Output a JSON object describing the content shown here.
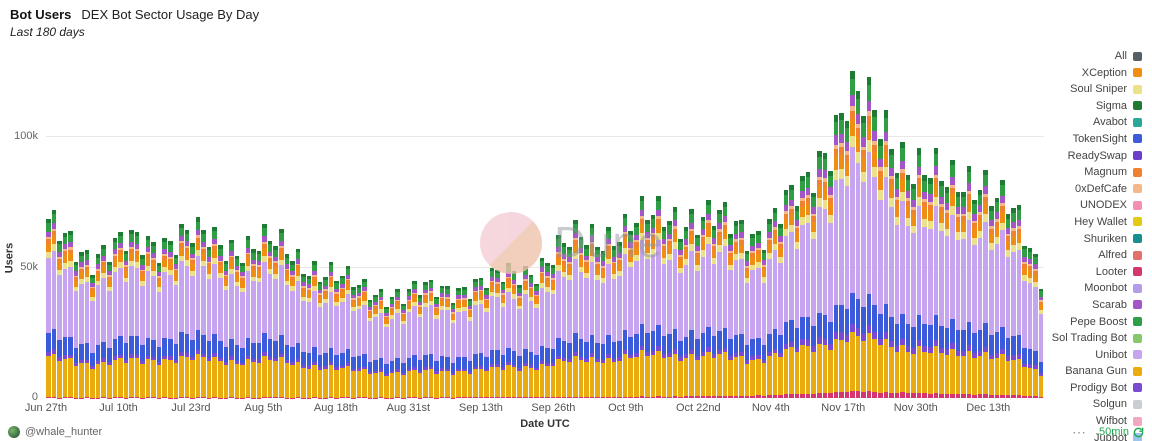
{
  "header": {
    "title": "Bot Users",
    "subtitle": "DEX Bot Sector Usage By Day",
    "timeframe": "Last 180 days"
  },
  "watermark": {
    "text": "Dune"
  },
  "footer": {
    "author": "@whale_hunter",
    "more_icon": "⋯",
    "refresh_age": "50min"
  },
  "legend": {
    "items": [
      {
        "label": "All",
        "color": "#555f66"
      },
      {
        "label": "XCeption",
        "color": "#ef8e13"
      },
      {
        "label": "Soul Sniper",
        "color": "#ece18b"
      },
      {
        "label": "Sigma",
        "color": "#1e7b34"
      },
      {
        "label": "Avabot",
        "color": "#2aa79b"
      },
      {
        "label": "TokenSight",
        "color": "#3b5bdb"
      },
      {
        "label": "ReadySwap",
        "color": "#6b3fc9"
      },
      {
        "label": "Magnum",
        "color": "#f0812f"
      },
      {
        "label": "0xDefCafe",
        "color": "#f3b98d"
      },
      {
        "label": "UNODEX",
        "color": "#f490b1"
      },
      {
        "label": "Hey Wallet",
        "color": "#e3cb13"
      },
      {
        "label": "Shuriken",
        "color": "#188f8f"
      },
      {
        "label": "Alfred",
        "color": "#e2716b"
      },
      {
        "label": "Looter",
        "color": "#d6366f"
      },
      {
        "label": "Moonbot",
        "color": "#b59ce8"
      },
      {
        "label": "Scarab",
        "color": "#a455c8"
      },
      {
        "label": "Pepe Boost",
        "color": "#2f9e44"
      },
      {
        "label": "Sol Trading Bot",
        "color": "#86c96b"
      },
      {
        "label": "Unibot",
        "color": "#c7a4ef"
      },
      {
        "label": "Banana Gun",
        "color": "#e9ab0d"
      },
      {
        "label": "Prodigy Bot",
        "color": "#7a4ad2"
      },
      {
        "label": "Solgun",
        "color": "#c9ced4"
      },
      {
        "label": "Wifbot",
        "color": "#f2a7c3"
      },
      {
        "label": "Jupbot",
        "color": "#9cc4ee"
      }
    ]
  },
  "chart_data": {
    "type": "bar",
    "stacked": true,
    "title": "DEX Bot Sector Usage By Day",
    "subtitle": "Last 180 days",
    "xlabel": "Date UTC",
    "ylabel": "Users",
    "ylim": [
      0,
      135000
    ],
    "grid": true,
    "legend_position": "right",
    "n_days": 180,
    "value_unit": "thousands of users",
    "y_ticks": [
      {
        "value": 0,
        "label": "0"
      },
      {
        "value": 50000,
        "label": "50k"
      },
      {
        "value": 100000,
        "label": "100k"
      }
    ],
    "x_ticks": [
      {
        "day": 0,
        "label": "Jun 27th"
      },
      {
        "day": 13,
        "label": "Jul 10th"
      },
      {
        "day": 26,
        "label": "Jul 23rd"
      },
      {
        "day": 39,
        "label": "Aug 5th"
      },
      {
        "day": 52,
        "label": "Aug 18th"
      },
      {
        "day": 65,
        "label": "Aug 31st"
      },
      {
        "day": 78,
        "label": "Sep 13th"
      },
      {
        "day": 91,
        "label": "Sep 26th"
      },
      {
        "day": 104,
        "label": "Oct 9th"
      },
      {
        "day": 117,
        "label": "Oct 22nd"
      },
      {
        "day": 130,
        "label": "Nov 4th"
      },
      {
        "day": 143,
        "label": "Nov 17th"
      },
      {
        "day": 156,
        "label": "Nov 30th"
      },
      {
        "day": 169,
        "label": "Dec 13th"
      }
    ],
    "sample_days": [
      0,
      8,
      16,
      24,
      32,
      40,
      48,
      56,
      64,
      72,
      80,
      88,
      96,
      104,
      112,
      120,
      128,
      136,
      144,
      150,
      156,
      162,
      168,
      174,
      179
    ],
    "series": [
      {
        "name": "Looter",
        "color": "#d6366f",
        "values_k": [
          0.2,
          0.2,
          0.2,
          0.2,
          0.2,
          0.2,
          0.2,
          0.2,
          0.2,
          0.2,
          0.3,
          0.3,
          0.4,
          0.5,
          0.6,
          0.8,
          1.0,
          1.5,
          2.5,
          2.2,
          2.0,
          1.5,
          1.5,
          1.0,
          0.6
        ]
      },
      {
        "name": "Banana Gun",
        "color": "#e9ab0d",
        "values_k": [
          15,
          13,
          14,
          15,
          14,
          14,
          12,
          10,
          9.5,
          10,
          10.5,
          12,
          14,
          15,
          16,
          15,
          14,
          17,
          21,
          19,
          17,
          15,
          16,
          13,
          9
        ]
      },
      {
        "name": "Prodigy Bot",
        "color": "#7a4ad2",
        "values_k": [
          1.5,
          1.2,
          1.3,
          1.4,
          1.3,
          1.3,
          1.1,
          0.9,
          0.8,
          0.9,
          1.0,
          1.1,
          1.3,
          1.5,
          1.6,
          1.5,
          1.5,
          2.0,
          3.0,
          2.6,
          2.3,
          2.0,
          2.2,
          1.7,
          1.1
        ]
      },
      {
        "name": "TokenSight",
        "color": "#3b5bdb",
        "values_k": [
          7,
          6,
          6.5,
          7,
          6.5,
          6.5,
          5.5,
          4.5,
          4.2,
          4.5,
          4.8,
          5.5,
          6.5,
          7,
          7.5,
          7,
          6.5,
          8,
          11,
          10,
          9,
          8,
          9,
          7,
          4.8
        ]
      },
      {
        "name": "Unibot",
        "color": "#c7a4ef",
        "values_k": [
          27,
          23,
          24.5,
          25.5,
          24.3,
          24.3,
          21,
          17.5,
          16.5,
          17.5,
          18.4,
          21,
          25.5,
          27,
          30,
          28.5,
          27,
          32,
          52,
          46,
          40,
          35,
          38.5,
          30.5,
          21
        ]
      },
      {
        "name": "Soul Sniper",
        "color": "#ece18b",
        "values_k": [
          2.2,
          1.8,
          1.9,
          2.0,
          1.9,
          1.9,
          1.7,
          1.4,
          1.3,
          1.4,
          1.5,
          1.7,
          2.0,
          2.2,
          2.4,
          2.3,
          2.2,
          2.7,
          4.2,
          3.7,
          3.3,
          2.9,
          3.1,
          2.5,
          1.7
        ]
      },
      {
        "name": "XCeption",
        "color": "#ef8e13",
        "values_k": [
          3.1,
          2.6,
          2.8,
          2.9,
          2.8,
          2.8,
          2.4,
          2.0,
          1.9,
          2.0,
          2.1,
          2.4,
          2.9,
          3.1,
          3.4,
          3.3,
          3.1,
          3.8,
          5.9,
          5.3,
          4.6,
          4.0,
          4.4,
          3.5,
          2.4
        ]
      },
      {
        "name": "Magnum",
        "color": "#f0812f",
        "values_k": [
          1.5,
          1.3,
          1.4,
          1.5,
          1.4,
          1.4,
          1.2,
          1.0,
          0.9,
          1.0,
          1.1,
          1.2,
          1.5,
          1.6,
          1.7,
          1.6,
          1.6,
          1.9,
          3.0,
          2.6,
          2.3,
          2.0,
          2.2,
          1.8,
          1.2
        ]
      },
      {
        "name": "0xDefCafe",
        "color": "#f3b98d",
        "values_k": [
          0.8,
          0.7,
          0.7,
          0.8,
          0.7,
          0.7,
          0.6,
          0.5,
          0.5,
          0.5,
          0.6,
          0.6,
          0.8,
          0.8,
          0.9,
          0.9,
          0.8,
          1.0,
          1.6,
          1.4,
          1.2,
          1.1,
          1.2,
          0.9,
          0.6
        ]
      },
      {
        "name": "Scarab",
        "color": "#a455c8",
        "values_k": [
          2.0,
          1.7,
          1.8,
          1.9,
          1.8,
          1.8,
          1.6,
          1.3,
          1.2,
          1.3,
          1.4,
          1.6,
          1.9,
          2.0,
          2.2,
          2.1,
          2.0,
          2.5,
          3.9,
          3.5,
          3.0,
          2.7,
          2.9,
          2.3,
          1.6
        ]
      },
      {
        "name": "Pepe Boost",
        "color": "#2f9e44",
        "values_k": [
          3.0,
          2.5,
          2.7,
          2.8,
          2.7,
          2.7,
          2.3,
          1.9,
          1.8,
          1.9,
          2.0,
          2.3,
          2.8,
          3.0,
          3.3,
          3.2,
          3.0,
          3.6,
          5.7,
          5.1,
          4.4,
          3.9,
          4.2,
          3.4,
          2.3
        ]
      },
      {
        "name": "Sigma",
        "color": "#1e7b34",
        "values_k": [
          1.5,
          1.3,
          1.4,
          1.4,
          1.4,
          1.4,
          1.2,
          1.0,
          0.9,
          1.0,
          1.0,
          1.2,
          1.4,
          1.5,
          1.7,
          1.6,
          1.5,
          1.8,
          2.9,
          2.6,
          2.2,
          2.0,
          2.1,
          1.7,
          1.2
        ]
      }
    ]
  }
}
